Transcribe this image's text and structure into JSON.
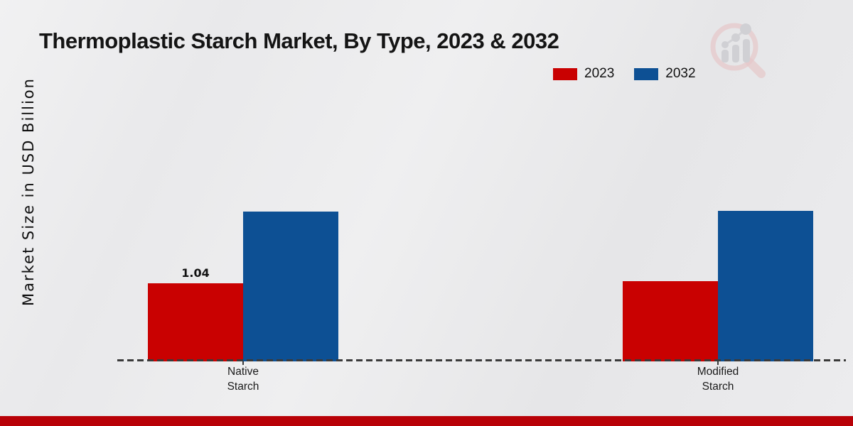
{
  "icons": {
    "brand_logo": "magnifier-with-bar-chart-watermark"
  },
  "footer_color": "#b80107",
  "chart_data": {
    "type": "bar",
    "title": "Thermoplastic Starch Market, By Type, 2023 & 2032",
    "xlabel": "",
    "ylabel": "Market Size in USD Billion",
    "categories": [
      "Native Starch",
      "Modified Starch"
    ],
    "series": [
      {
        "name": "2023",
        "color": "#c90101",
        "values": [
          1.04,
          1.07
        ]
      },
      {
        "name": "2032",
        "color": "#0d5094",
        "values": [
          2.0,
          2.01
        ]
      }
    ],
    "data_labels": [
      {
        "category_index": 0,
        "series_index": 0,
        "text": "1.04"
      }
    ],
    "ylim": [
      0,
      2.6
    ],
    "grid": false,
    "y_axis_ticks_visible": false,
    "baseline_style": "dashed",
    "legend_position": "top-right"
  }
}
